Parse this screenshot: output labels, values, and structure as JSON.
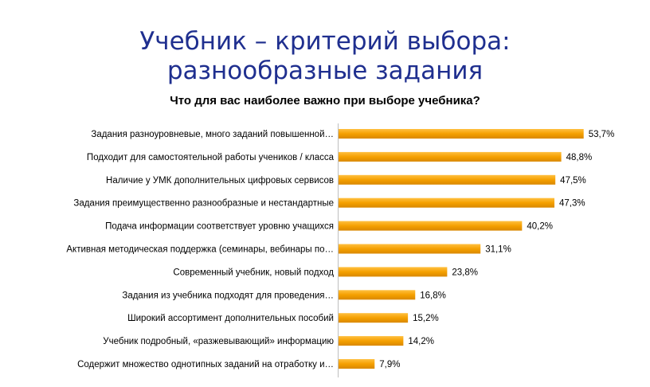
{
  "slide": {
    "title_line1": "Учебник – критерий выбора:",
    "title_line2": "разнообразные задания"
  },
  "chart_data": {
    "type": "bar",
    "orientation": "horizontal",
    "title": "Что для вас наиболее важно при выборе учебника?",
    "categories": [
      "Задания разноуровневые, много заданий повышенной…",
      "Подходит для самостоятельной работы учеников / класса",
      "Наличие у УМК дополнительных цифровых сервисов",
      "Задания преимущественно разнообразные и нестандартные",
      "Подача информации соответствует уровню учащихся",
      "Активная методическая поддержка (семинары, вебинары по…",
      "Современный учебник, новый подход",
      "Задания из учебника подходят для проведения…",
      "Широкий ассортимент дополнительных пособий",
      "Учебник подробный, «разжевывающий» информацию",
      "Содержит множество однотипных заданий на отработку и…"
    ],
    "values": [
      53.7,
      48.8,
      47.5,
      47.3,
      40.2,
      31.1,
      23.8,
      16.8,
      15.2,
      14.2,
      7.9
    ],
    "value_labels": [
      "53,7%",
      "48,8%",
      "47,5%",
      "47,3%",
      "40,2%",
      "31,1%",
      "23,8%",
      "16,8%",
      "15,2%",
      "14,2%",
      "7,9%"
    ],
    "xlim": [
      0,
      60
    ],
    "bar_color": "#f5a000",
    "grid": false,
    "legend": false
  }
}
